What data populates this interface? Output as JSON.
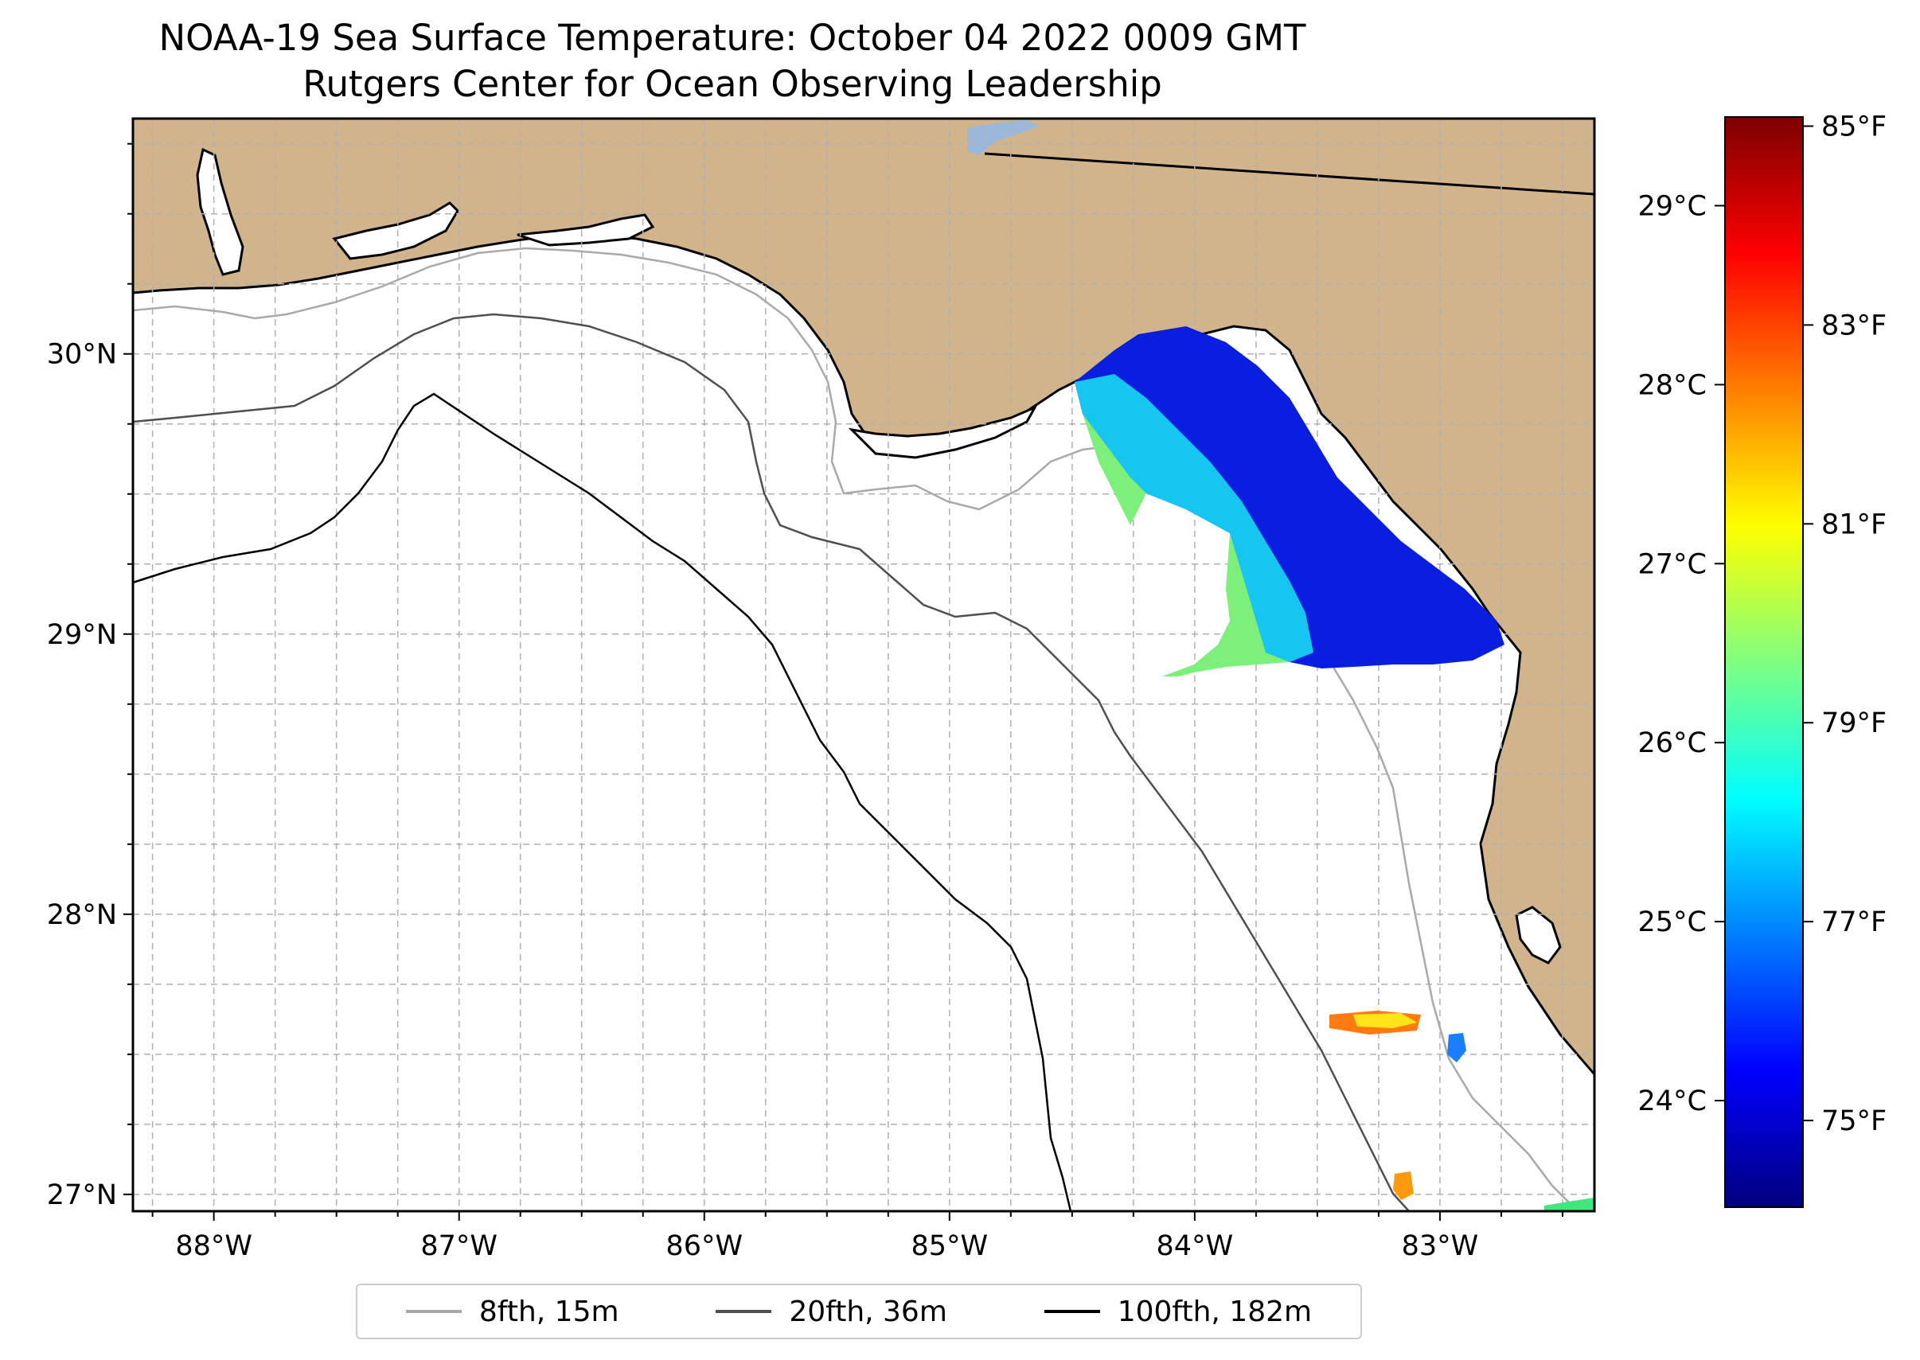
{
  "title": {
    "line1": "NOAA-19 Sea Surface Temperature: October 04 2022 0009 GMT",
    "line2": "Rutgers Center for Ocean Observing Leadership"
  },
  "map": {
    "lon_range": [
      -88.33,
      -82.37
    ],
    "lat_range": [
      26.94,
      30.84
    ],
    "land_color": "#d2b48c",
    "water_color": "#ffffff",
    "lon_ticks": [
      {
        "value": -88,
        "label": "88°W"
      },
      {
        "value": -87,
        "label": "87°W"
      },
      {
        "value": -86,
        "label": "86°W"
      },
      {
        "value": -85,
        "label": "85°W"
      },
      {
        "value": -84,
        "label": "84°W"
      },
      {
        "value": -83,
        "label": "83°W"
      }
    ],
    "lat_ticks": [
      {
        "value": 27,
        "label": "27°N"
      },
      {
        "value": 28,
        "label": "28°N"
      },
      {
        "value": 29,
        "label": "29°N"
      },
      {
        "value": 30,
        "label": "30°N"
      }
    ]
  },
  "legend": {
    "items": [
      {
        "label": "8fth, 15m",
        "color": "#a9a9a9"
      },
      {
        "label": "20fth, 36m",
        "color": "#4f4f4f"
      },
      {
        "label": "100fth, 182m",
        "color": "#000000"
      }
    ]
  },
  "colorbar": {
    "colormap": "jet",
    "celsius_range": [
      23.4,
      29.5
    ],
    "celsius_ticks": [
      {
        "value": 24,
        "label": "24°C"
      },
      {
        "value": 25,
        "label": "25°C"
      },
      {
        "value": 26,
        "label": "26°C"
      },
      {
        "value": 27,
        "label": "27°C"
      },
      {
        "value": 28,
        "label": "28°C"
      },
      {
        "value": 29,
        "label": "29°C"
      }
    ],
    "fahrenheit_ticks": [
      {
        "value": 75,
        "label": "75°F"
      },
      {
        "value": 77,
        "label": "77°F"
      },
      {
        "value": 79,
        "label": "79°F"
      },
      {
        "value": 81,
        "label": "81°F"
      },
      {
        "value": 83,
        "label": "83°F"
      },
      {
        "value": 85,
        "label": "85°F"
      }
    ]
  }
}
